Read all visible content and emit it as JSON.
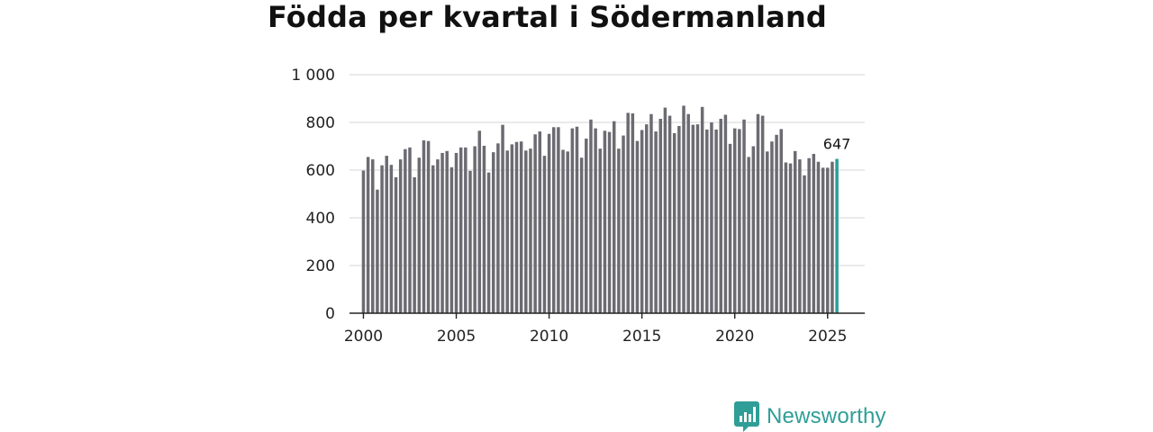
{
  "header": {
    "title": "Födda per kvartal i Södermanland"
  },
  "brand": {
    "name": "Newsworthy"
  },
  "colors": {
    "bar": "#6c6b72",
    "highlight": "#2a9d96",
    "grid": "#dddddd",
    "axis": "#222222",
    "brand": "#2e9e96"
  },
  "chart_data": {
    "type": "bar",
    "title": "Födda per kvartal i Södermanland",
    "xlabel": "",
    "ylabel": "",
    "x_start": 2000.0,
    "x_step": 0.25,
    "xlim": [
      1999.25,
      2027.0
    ],
    "ylim": [
      0,
      1000
    ],
    "yticks": [
      0,
      200,
      400,
      600,
      800,
      1000
    ],
    "ytick_labels": [
      "0",
      "200",
      "400",
      "600",
      "800",
      "1 000"
    ],
    "xticks": [
      2000,
      2005,
      2010,
      2015,
      2020,
      2025
    ],
    "xtick_labels": [
      "2000",
      "2005",
      "2010",
      "2015",
      "2020",
      "2025"
    ],
    "values": [
      598,
      655,
      645,
      518,
      620,
      660,
      622,
      570,
      645,
      688,
      695,
      570,
      652,
      725,
      722,
      620,
      645,
      672,
      680,
      612,
      672,
      695,
      695,
      597,
      700,
      765,
      702,
      590,
      675,
      712,
      790,
      682,
      708,
      718,
      720,
      682,
      690,
      750,
      762,
      660,
      752,
      780,
      780,
      685,
      678,
      775,
      782,
      652,
      732,
      812,
      775,
      690,
      765,
      760,
      805,
      690,
      745,
      840,
      838,
      722,
      768,
      792,
      835,
      762,
      815,
      862,
      828,
      755,
      785,
      870,
      835,
      790,
      792,
      865,
      770,
      800,
      770,
      815,
      832,
      710,
      775,
      772,
      812,
      655,
      700,
      835,
      828,
      678,
      720,
      748,
      772,
      632,
      628,
      680,
      645,
      578,
      650,
      668,
      635,
      610,
      610,
      635,
      647
    ],
    "highlight_index": 102,
    "annotation": {
      "index": 102,
      "label": "647"
    },
    "grid": true,
    "legend": "none"
  }
}
